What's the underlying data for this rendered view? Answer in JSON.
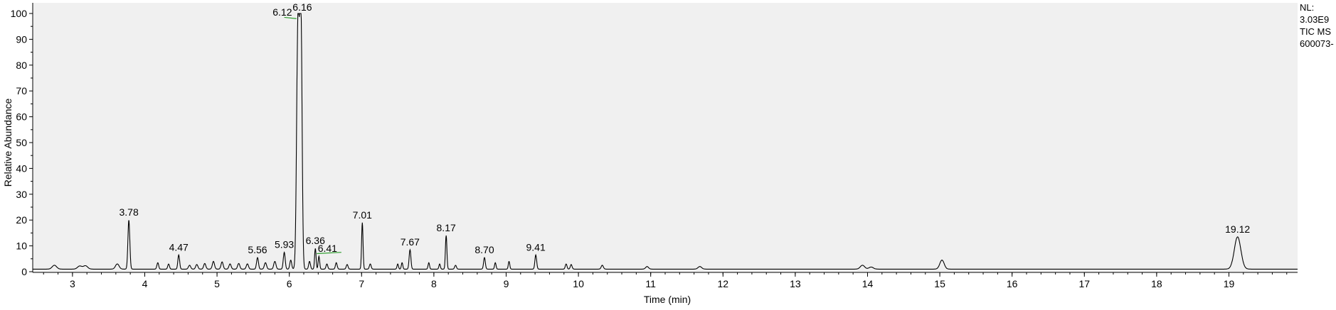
{
  "info": {
    "nl_label": "NL:",
    "nl_value": "3.03E9",
    "scan_filter": "TIC  MS",
    "sample": "600073-"
  },
  "colors": {
    "plot_background": "#f0f0f0",
    "trace": "#000000",
    "integration_marker": "#2e9e2e"
  },
  "chart_data": {
    "type": "line",
    "title": "",
    "xlabel": "Time (min)",
    "ylabel": "Relative Abundance",
    "xlim": [
      2.45,
      19.95
    ],
    "ylim": [
      0,
      100
    ],
    "x_ticks": [
      3,
      4,
      5,
      6,
      7,
      8,
      9,
      10,
      11,
      12,
      13,
      14,
      15,
      16,
      17,
      18,
      19
    ],
    "y_ticks": [
      0,
      10,
      20,
      30,
      40,
      50,
      60,
      70,
      80,
      90,
      100
    ],
    "grid": false,
    "baseline": 1.0,
    "peaks": [
      {
        "rt": 2.75,
        "height": 1.5,
        "width": 0.03
      },
      {
        "rt": 3.1,
        "height": 1.2,
        "width": 0.03
      },
      {
        "rt": 3.18,
        "height": 1.3,
        "width": 0.03
      },
      {
        "rt": 3.62,
        "height": 2.0,
        "width": 0.025
      },
      {
        "rt": 3.78,
        "height": 19.0,
        "width": 0.013,
        "label": "3.78"
      },
      {
        "rt": 4.18,
        "height": 2.5,
        "width": 0.012
      },
      {
        "rt": 4.33,
        "height": 2.0,
        "width": 0.012
      },
      {
        "rt": 4.47,
        "height": 5.5,
        "width": 0.012,
        "label": "4.47"
      },
      {
        "rt": 4.62,
        "height": 1.5,
        "width": 0.015
      },
      {
        "rt": 4.72,
        "height": 1.8,
        "width": 0.015
      },
      {
        "rt": 4.83,
        "height": 2.2,
        "width": 0.015
      },
      {
        "rt": 4.95,
        "height": 3.0,
        "width": 0.015
      },
      {
        "rt": 5.07,
        "height": 2.8,
        "width": 0.015
      },
      {
        "rt": 5.18,
        "height": 2.0,
        "width": 0.015
      },
      {
        "rt": 5.3,
        "height": 2.2,
        "width": 0.015
      },
      {
        "rt": 5.42,
        "height": 2.0,
        "width": 0.015
      },
      {
        "rt": 5.56,
        "height": 4.5,
        "width": 0.013,
        "label": "5.56"
      },
      {
        "rt": 5.67,
        "height": 2.5,
        "width": 0.015
      },
      {
        "rt": 5.8,
        "height": 3.0,
        "width": 0.015
      },
      {
        "rt": 5.93,
        "height": 6.5,
        "width": 0.013,
        "label": "5.93"
      },
      {
        "rt": 6.02,
        "height": 3.5,
        "width": 0.013
      },
      {
        "rt": 6.12,
        "height": 97.0,
        "width": 0.018,
        "label": "6.12"
      },
      {
        "rt": 6.16,
        "height": 100.0,
        "width": 0.016,
        "label": "6.16"
      },
      {
        "rt": 6.28,
        "height": 3.0,
        "width": 0.012
      },
      {
        "rt": 6.36,
        "height": 8.0,
        "width": 0.01,
        "label": "6.36"
      },
      {
        "rt": 6.41,
        "height": 5.0,
        "width": 0.01,
        "label": "6.41"
      },
      {
        "rt": 6.52,
        "height": 2.0,
        "width": 0.012
      },
      {
        "rt": 6.65,
        "height": 2.5,
        "width": 0.012
      },
      {
        "rt": 6.8,
        "height": 1.8,
        "width": 0.012
      },
      {
        "rt": 7.01,
        "height": 18.0,
        "width": 0.01,
        "label": "7.01"
      },
      {
        "rt": 7.12,
        "height": 2.0,
        "width": 0.012
      },
      {
        "rt": 7.5,
        "height": 2.0,
        "width": 0.01
      },
      {
        "rt": 7.56,
        "height": 2.5,
        "width": 0.01
      },
      {
        "rt": 7.67,
        "height": 7.5,
        "width": 0.012,
        "label": "7.67"
      },
      {
        "rt": 7.93,
        "height": 2.5,
        "width": 0.01
      },
      {
        "rt": 8.08,
        "height": 2.0,
        "width": 0.01
      },
      {
        "rt": 8.17,
        "height": 13.0,
        "width": 0.01,
        "label": "8.17"
      },
      {
        "rt": 8.3,
        "height": 1.5,
        "width": 0.012
      },
      {
        "rt": 8.7,
        "height": 4.5,
        "width": 0.012,
        "label": "8.70"
      },
      {
        "rt": 8.85,
        "height": 2.5,
        "width": 0.01
      },
      {
        "rt": 9.04,
        "height": 3.0,
        "width": 0.01
      },
      {
        "rt": 9.41,
        "height": 5.5,
        "width": 0.012,
        "label": "9.41"
      },
      {
        "rt": 9.83,
        "height": 2.0,
        "width": 0.012
      },
      {
        "rt": 9.9,
        "height": 1.8,
        "width": 0.012
      },
      {
        "rt": 10.33,
        "height": 1.5,
        "width": 0.015
      },
      {
        "rt": 10.95,
        "height": 1.0,
        "width": 0.02
      },
      {
        "rt": 11.68,
        "height": 1.0,
        "width": 0.025
      },
      {
        "rt": 13.93,
        "height": 1.5,
        "width": 0.03
      },
      {
        "rt": 14.05,
        "height": 0.8,
        "width": 0.03
      },
      {
        "rt": 15.03,
        "height": 3.5,
        "width": 0.03
      },
      {
        "rt": 19.12,
        "height": 12.5,
        "width": 0.045,
        "label": "19.12"
      }
    ],
    "integration_markers": [
      {
        "x": [
          5.93,
          6.1
        ],
        "y": [
          98.5,
          98.0
        ]
      },
      {
        "x": [
          6.38,
          6.72
        ],
        "y": [
          7.0,
          7.5
        ]
      }
    ]
  }
}
